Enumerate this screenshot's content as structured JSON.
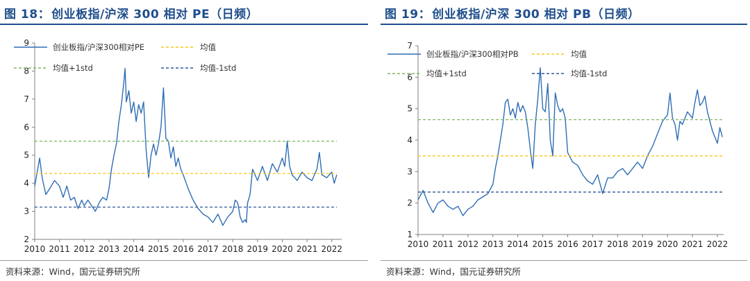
{
  "figures": [
    {
      "fig_label": "图 18：",
      "title": "创业板指/沪深 300 相对 PE（日频）",
      "source": "资料来源：Wind，国元证券研究所"
    },
    {
      "fig_label": "图 19：",
      "title": "创业板指/沪深 300 相对 PB（日频）",
      "source": "资料来源：Wind，国元证券研究所"
    }
  ],
  "chart_data": [
    {
      "type": "line",
      "title": "",
      "xlabel": "",
      "ylabel": "",
      "xlim": [
        2010.0,
        2022.4
      ],
      "ylim": [
        2,
        9
      ],
      "x_ticks": [
        "2010",
        "2011",
        "2012",
        "2013",
        "2014",
        "2015",
        "2016",
        "2017",
        "2018",
        "2019",
        "2020",
        "2021",
        "2022"
      ],
      "y_ticks": [
        "2",
        "3",
        "4",
        "5",
        "6",
        "7",
        "8",
        "9"
      ],
      "grid": false,
      "legend_position": "top-left",
      "series": [
        {
          "name": "创业板指/沪深300相对PE",
          "color": "#2e6db4",
          "style": "solid",
          "x": [
            2010.0,
            2010.2,
            2010.3,
            2010.45,
            2010.6,
            2010.8,
            2011.0,
            2011.15,
            2011.3,
            2011.45,
            2011.6,
            2011.75,
            2011.9,
            2012.0,
            2012.15,
            2012.3,
            2012.45,
            2012.6,
            2012.75,
            2012.9,
            2013.0,
            2013.1,
            2013.2,
            2013.3,
            2013.4,
            2013.5,
            2013.6,
            2013.65,
            2013.7,
            2013.8,
            2013.9,
            2014.0,
            2014.1,
            2014.2,
            2014.3,
            2014.4,
            2014.5,
            2014.6,
            2014.7,
            2014.8,
            2014.9,
            2015.0,
            2015.1,
            2015.2,
            2015.3,
            2015.4,
            2015.5,
            2015.6,
            2015.7,
            2015.8,
            2015.9,
            2016.0,
            2016.2,
            2016.4,
            2016.6,
            2016.8,
            2017.0,
            2017.2,
            2017.4,
            2017.6,
            2017.8,
            2018.0,
            2018.1,
            2018.2,
            2018.3,
            2018.4,
            2018.5,
            2018.55,
            2018.6,
            2018.7,
            2018.8,
            2019.0,
            2019.2,
            2019.4,
            2019.6,
            2019.8,
            2020.0,
            2020.1,
            2020.2,
            2020.3,
            2020.4,
            2020.6,
            2020.8,
            2021.0,
            2021.2,
            2021.4,
            2021.5,
            2021.6,
            2021.8,
            2022.0,
            2022.1,
            2022.2
          ],
          "y": [
            3.9,
            4.9,
            4.2,
            3.6,
            3.8,
            4.1,
            3.9,
            3.5,
            3.9,
            3.4,
            3.5,
            3.1,
            3.4,
            3.2,
            3.4,
            3.2,
            3.0,
            3.3,
            3.5,
            3.4,
            3.8,
            4.5,
            5.0,
            5.4,
            6.2,
            6.8,
            7.6,
            8.1,
            6.9,
            7.3,
            6.5,
            6.9,
            6.2,
            6.8,
            6.5,
            6.9,
            5.2,
            4.2,
            5.0,
            5.4,
            5.0,
            5.4,
            6.0,
            7.4,
            5.6,
            5.5,
            4.9,
            5.3,
            4.6,
            4.9,
            4.5,
            4.3,
            3.8,
            3.4,
            3.1,
            2.9,
            2.8,
            2.6,
            2.9,
            2.5,
            2.8,
            3.0,
            3.4,
            3.3,
            2.8,
            2.6,
            2.7,
            2.6,
            3.3,
            3.6,
            4.5,
            4.1,
            4.6,
            4.1,
            4.7,
            4.4,
            4.9,
            4.6,
            5.5,
            4.6,
            4.3,
            4.1,
            4.4,
            4.2,
            4.1,
            4.5,
            5.1,
            4.3,
            4.2,
            4.4,
            4.0,
            4.3
          ]
        },
        {
          "name": "均值",
          "color": "#f5c518",
          "style": "dashed",
          "x": [
            2010.0,
            2022.2
          ],
          "y": [
            4.35,
            4.35
          ]
        },
        {
          "name": "均值+1std",
          "color": "#7bb661",
          "style": "dashed",
          "x": [
            2010.0,
            2022.2
          ],
          "y": [
            5.5,
            5.5
          ]
        },
        {
          "name": "均值-1std",
          "color": "#2e5597",
          "style": "dashed",
          "x": [
            2010.0,
            2022.2
          ],
          "y": [
            3.15,
            3.15
          ]
        }
      ]
    },
    {
      "type": "line",
      "title": "",
      "xlabel": "",
      "ylabel": "",
      "xlim": [
        2010.0,
        2022.25
      ],
      "ylim": [
        1,
        7
      ],
      "x_ticks": [
        "2010",
        "2011",
        "2012",
        "2013",
        "2014",
        "2015",
        "2016",
        "2017",
        "2018",
        "2019",
        "2020",
        "2021",
        "2022"
      ],
      "y_ticks": [
        "1",
        "2",
        "3",
        "4",
        "5",
        "6",
        "7"
      ],
      "grid": false,
      "legend_position": "top-left",
      "series": [
        {
          "name": "创业板指/沪深300相对PB",
          "color": "#2e6db4",
          "style": "solid",
          "x": [
            2010.0,
            2010.2,
            2010.4,
            2010.6,
            2010.8,
            2011.0,
            2011.2,
            2011.4,
            2011.6,
            2011.8,
            2012.0,
            2012.2,
            2012.4,
            2012.6,
            2012.8,
            2013.0,
            2013.1,
            2013.2,
            2013.3,
            2013.4,
            2013.5,
            2013.6,
            2013.7,
            2013.8,
            2013.9,
            2014.0,
            2014.1,
            2014.2,
            2014.3,
            2014.4,
            2014.5,
            2014.6,
            2014.7,
            2014.8,
            2014.9,
            2015.0,
            2015.1,
            2015.2,
            2015.3,
            2015.4,
            2015.5,
            2015.6,
            2015.7,
            2015.8,
            2015.9,
            2016.0,
            2016.2,
            2016.4,
            2016.6,
            2016.8,
            2017.0,
            2017.2,
            2017.4,
            2017.6,
            2017.8,
            2018.0,
            2018.2,
            2018.4,
            2018.6,
            2018.8,
            2019.0,
            2019.2,
            2019.4,
            2019.6,
            2019.8,
            2020.0,
            2020.1,
            2020.2,
            2020.3,
            2020.4,
            2020.5,
            2020.6,
            2020.8,
            2021.0,
            2021.1,
            2021.2,
            2021.3,
            2021.4,
            2021.5,
            2021.6,
            2021.8,
            2022.0,
            2022.1,
            2022.2
          ],
          "y": [
            2.1,
            2.4,
            2.0,
            1.7,
            2.0,
            2.1,
            1.9,
            1.8,
            1.9,
            1.6,
            1.8,
            1.9,
            2.1,
            2.2,
            2.3,
            2.6,
            3.1,
            3.5,
            4.0,
            4.5,
            5.2,
            5.3,
            4.8,
            5.0,
            4.7,
            5.2,
            4.9,
            5.1,
            4.9,
            4.4,
            3.7,
            3.1,
            4.5,
            5.3,
            6.3,
            5.0,
            4.9,
            5.8,
            4.0,
            3.5,
            5.5,
            5.1,
            4.9,
            5.0,
            4.7,
            3.6,
            3.3,
            3.2,
            2.9,
            2.7,
            2.6,
            2.9,
            2.3,
            2.8,
            2.8,
            3.0,
            3.1,
            2.9,
            3.1,
            3.3,
            3.1,
            3.5,
            3.8,
            4.2,
            4.6,
            4.8,
            5.5,
            4.7,
            4.5,
            4.0,
            4.6,
            4.5,
            4.9,
            4.7,
            5.2,
            5.6,
            5.1,
            5.2,
            5.4,
            4.9,
            4.3,
            3.9,
            4.4,
            4.1
          ]
        },
        {
          "name": "均值",
          "color": "#f5c518",
          "style": "dashed",
          "x": [
            2010.0,
            2022.25
          ],
          "y": [
            3.5,
            3.5
          ]
        },
        {
          "name": "均值+1std",
          "color": "#7bb661",
          "style": "dashed",
          "x": [
            2010.0,
            2022.25
          ],
          "y": [
            4.65,
            4.65
          ]
        },
        {
          "name": "均值-1std",
          "color": "#2e5597",
          "style": "dashed",
          "x": [
            2010.0,
            2022.25
          ],
          "y": [
            2.35,
            2.35
          ]
        }
      ]
    }
  ]
}
